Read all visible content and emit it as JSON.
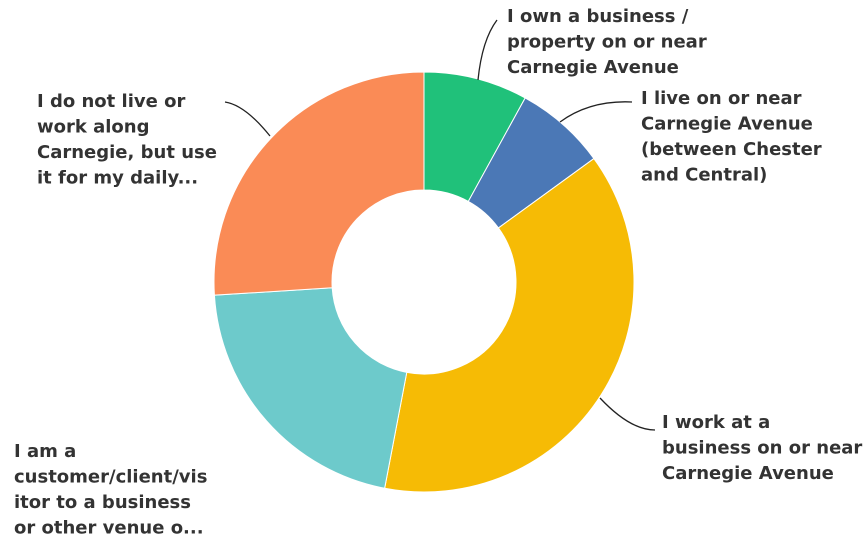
{
  "chart_data": {
    "type": "donut",
    "categories": [
      [
        "I own a business /",
        "property on or near",
        "Carnegie Avenue"
      ],
      [
        "I live on or near",
        "Carnegie Avenue",
        "(between Chester",
        "and Central)"
      ],
      [
        "I work at a",
        "business on or near",
        "Carnegie Avenue"
      ],
      [
        "I am a",
        "customer/client/vis",
        "itor to a business",
        "or other venue o..."
      ],
      [
        "I do not live or",
        "work along",
        "Carnegie, but use",
        "it for my daily..."
      ]
    ],
    "values": [
      8,
      7,
      38,
      21,
      26
    ],
    "colors": [
      "#20c17a",
      "#4b78b6",
      "#f6bb05",
      "#6dcacb",
      "#fa8b56"
    ]
  }
}
